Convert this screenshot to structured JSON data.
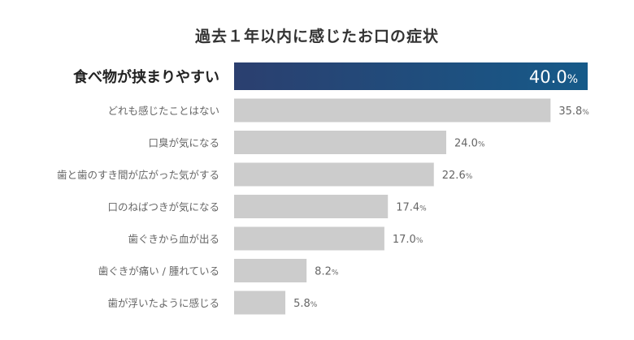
{
  "chart_data": {
    "type": "bar",
    "orientation": "horizontal",
    "title": "過去１年以内に感じたお口の症状",
    "categories": [
      "食べ物が挟まりやすい",
      "どれも感じたことはない",
      "口臭が気になる",
      "歯と歯のすき間が広がった気がする",
      "口のねばつきが気になる",
      "歯ぐきから血が出る",
      "歯ぐきが痛い / 腫れている",
      "歯が浮いたように感じる"
    ],
    "values": [
      40.0,
      35.8,
      24.0,
      22.6,
      17.4,
      17.0,
      8.2,
      5.8
    ],
    "value_labels": [
      "40.0",
      "35.8",
      "24.0",
      "22.6",
      "17.4",
      "17.0",
      "8.2",
      "5.8"
    ],
    "unit": "%",
    "highlight_index": 0,
    "xlim": [
      0,
      40
    ],
    "grid": false,
    "colors": {
      "highlight_start": "#2b3f6f",
      "highlight_end": "#165a89",
      "bar": "#cccccc",
      "label": "#666666",
      "highlight_label": "#222222"
    }
  }
}
